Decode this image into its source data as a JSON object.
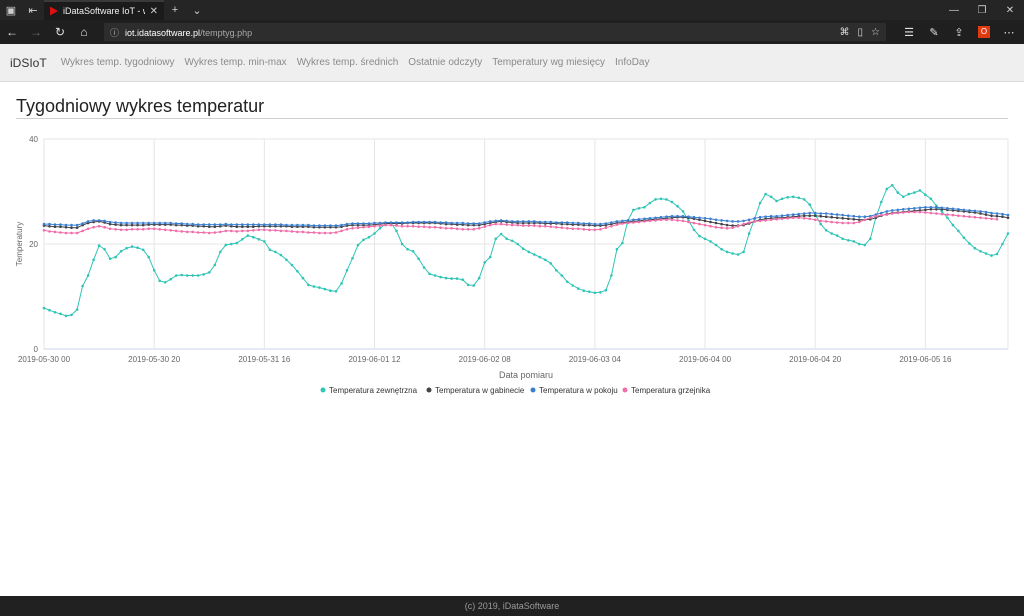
{
  "browser": {
    "tab_title": "iDataSoftware IoT - wyk",
    "url_host": "iot.idatasoftware.pl",
    "url_path": "/temptyg.php"
  },
  "nav": {
    "brand": "iDSIoT",
    "links": [
      "Wykres temp. tygodniowy",
      "Wykres temp. min-max",
      "Wykres temp. średnich",
      "Ostatnie odczyty",
      "Temperatury wg miesięcy",
      "InfoDay"
    ]
  },
  "page": {
    "heading": "Tygodniowy wykres temperatur"
  },
  "footer": {
    "text": "(c) 2019, iDataSoftware"
  },
  "chart_data": {
    "type": "line",
    "xlabel": "Data pomiaru",
    "ylabel": "Temperatury",
    "ylim": [
      0,
      40
    ],
    "yticks": [
      "0",
      "20",
      "40"
    ],
    "xticks": [
      "2019-05-30 00",
      "2019-05-30 20",
      "2019-05-31 16",
      "2019-06-01 12",
      "2019-06-02 08",
      "2019-06-03 04",
      "2019-06-04 00",
      "2019-06-04 20",
      "2019-06-05 16"
    ],
    "grid": true,
    "legend_position": "bottom",
    "series": [
      {
        "name": "Temperatura zewnętrzna",
        "color": "#2ec4b6",
        "values": [
          7.8,
          7.4,
          7.0,
          6.7,
          6.3,
          6.5,
          7.5,
          12.0,
          14.0,
          17.0,
          19.7,
          19.0,
          17.2,
          17.5,
          18.6,
          19.2,
          19.5,
          19.3,
          18.9,
          17.5,
          15.0,
          13.0,
          12.7,
          13.3,
          14.0,
          14.1,
          14.0,
          14.0,
          14.0,
          14.2,
          14.6,
          16.0,
          18.5,
          19.8,
          20.0,
          20.2,
          20.9,
          21.6,
          21.3,
          20.9,
          20.5,
          18.9,
          18.5,
          17.9,
          17.0,
          16.0,
          14.8,
          13.5,
          12.2,
          11.9,
          11.7,
          11.4,
          11.1,
          11.0,
          12.5,
          15.0,
          17.3,
          19.8,
          20.8,
          21.3,
          22.0,
          23.0,
          23.8,
          24.0,
          22.5,
          20.0,
          19.0,
          18.6,
          17.2,
          15.5,
          14.3,
          14.0,
          13.7,
          13.5,
          13.4,
          13.4,
          13.2,
          12.2,
          12.1,
          13.5,
          16.5,
          17.5,
          21.0,
          21.9,
          21.0,
          20.6,
          20.0,
          19.1,
          18.5,
          18.0,
          17.5,
          17.0,
          16.3,
          15.0,
          14.0,
          12.8,
          12.1,
          11.5,
          11.1,
          10.9,
          10.7,
          10.8,
          11.2,
          14.0,
          19.0,
          20.2,
          24.5,
          26.5,
          26.8,
          27.0,
          27.8,
          28.5,
          28.6,
          28.5,
          28.0,
          27.2,
          26.2,
          24.5,
          22.7,
          21.5,
          21.0,
          20.5,
          19.8,
          19.0,
          18.5,
          18.2,
          18.0,
          18.5,
          22.0,
          24.8,
          27.8,
          29.5,
          29.0,
          28.2,
          28.6,
          28.9,
          29.0,
          28.8,
          28.5,
          27.5,
          25.6,
          23.8,
          22.6,
          22.0,
          21.6,
          21.0,
          20.7,
          20.5,
          20.0,
          19.8,
          21.0,
          25.0,
          28.0,
          30.5,
          31.2,
          29.8,
          29.0,
          29.5,
          29.8,
          30.2,
          29.4,
          28.6,
          27.3,
          26.2,
          25.0,
          23.6,
          22.5,
          21.2,
          20.1,
          19.2,
          18.6,
          18.2,
          17.8,
          18.1,
          20.0,
          22.0
        ]
      },
      {
        "name": "Temperatura w gabinecie",
        "color": "#434348",
        "values": [
          23.5,
          23.4,
          23.3,
          23.3,
          23.2,
          23.1,
          23.1,
          23.6,
          24.0,
          24.2,
          24.3,
          24.1,
          23.8,
          23.7,
          23.6,
          23.6,
          23.6,
          23.6,
          23.6,
          23.7,
          23.7,
          23.7,
          23.7,
          23.7,
          23.6,
          23.6,
          23.5,
          23.5,
          23.4,
          23.4,
          23.3,
          23.3,
          23.4,
          23.5,
          23.4,
          23.3,
          23.3,
          23.3,
          23.3,
          23.4,
          23.4,
          23.4,
          23.4,
          23.4,
          23.4,
          23.3,
          23.3,
          23.3,
          23.3,
          23.2,
          23.2,
          23.2,
          23.2,
          23.2,
          23.3,
          23.5,
          23.6,
          23.6,
          23.6,
          23.6,
          23.7,
          23.8,
          23.9,
          23.9,
          23.9,
          23.9,
          24.0,
          24.0,
          24.0,
          24.0,
          24.0,
          24.0,
          23.9,
          23.8,
          23.8,
          23.7,
          23.7,
          23.6,
          23.6,
          23.6,
          23.8,
          24.0,
          24.2,
          24.3,
          24.2,
          24.1,
          24.0,
          24.0,
          24.0,
          24.0,
          24.0,
          23.9,
          23.9,
          23.9,
          23.8,
          23.8,
          23.7,
          23.7,
          23.6,
          23.6,
          23.5,
          23.5,
          23.6,
          23.8,
          24.0,
          24.1,
          24.2,
          24.3,
          24.4,
          24.5,
          24.6,
          24.7,
          24.8,
          24.9,
          25.0,
          25.1,
          25.1,
          25.0,
          24.8,
          24.6,
          24.4,
          24.2,
          24.0,
          23.8,
          23.6,
          23.5,
          23.5,
          23.6,
          23.9,
          24.3,
          24.6,
          24.8,
          24.9,
          25.0,
          25.0,
          25.1,
          25.2,
          25.3,
          25.4,
          25.4,
          25.4,
          25.3,
          25.2,
          25.1,
          25.0,
          24.9,
          24.8,
          24.7,
          24.6,
          24.6,
          24.7,
          25.0,
          25.4,
          25.7,
          25.9,
          26.0,
          26.1,
          26.2,
          26.3,
          26.4,
          26.5,
          26.6,
          26.6,
          26.6,
          26.5,
          26.4,
          26.3,
          26.2,
          26.1,
          26.0,
          25.8,
          25.6,
          25.4,
          25.3,
          25.2,
          25.0
        ]
      },
      {
        "name": "Temperatura w pokoju",
        "color": "#3a7fcf",
        "values": [
          23.8,
          23.8,
          23.7,
          23.7,
          23.6,
          23.6,
          23.6,
          23.9,
          24.3,
          24.5,
          24.5,
          24.4,
          24.2,
          24.1,
          24.0,
          24.0,
          24.0,
          24.0,
          24.0,
          24.0,
          24.0,
          24.0,
          24.0,
          24.0,
          23.9,
          23.9,
          23.8,
          23.8,
          23.7,
          23.7,
          23.7,
          23.7,
          23.7,
          23.8,
          23.7,
          23.7,
          23.7,
          23.7,
          23.7,
          23.7,
          23.7,
          23.7,
          23.7,
          23.7,
          23.6,
          23.6,
          23.6,
          23.6,
          23.6,
          23.5,
          23.5,
          23.5,
          23.5,
          23.5,
          23.6,
          23.8,
          23.9,
          23.9,
          23.9,
          23.9,
          24.0,
          24.0,
          24.1,
          24.1,
          24.1,
          24.1,
          24.1,
          24.2,
          24.2,
          24.2,
          24.2,
          24.2,
          24.1,
          24.1,
          24.0,
          24.0,
          24.0,
          23.9,
          23.9,
          23.9,
          24.1,
          24.3,
          24.4,
          24.5,
          24.4,
          24.3,
          24.3,
          24.3,
          24.3,
          24.3,
          24.2,
          24.2,
          24.2,
          24.1,
          24.1,
          24.1,
          24.0,
          24.0,
          23.9,
          23.9,
          23.8,
          23.8,
          23.9,
          24.1,
          24.3,
          24.4,
          24.5,
          24.6,
          24.7,
          24.8,
          24.9,
          25.0,
          25.1,
          25.2,
          25.3,
          25.3,
          25.3,
          25.2,
          25.1,
          25.0,
          24.9,
          24.8,
          24.6,
          24.5,
          24.4,
          24.3,
          24.3,
          24.4,
          24.6,
          24.9,
          25.1,
          25.2,
          25.3,
          25.3,
          25.4,
          25.5,
          25.6,
          25.7,
          25.8,
          25.9,
          25.9,
          25.8,
          25.8,
          25.7,
          25.6,
          25.5,
          25.4,
          25.3,
          25.2,
          25.2,
          25.3,
          25.6,
          25.9,
          26.2,
          26.4,
          26.5,
          26.6,
          26.7,
          26.8,
          26.9,
          27.0,
          27.0,
          27.0,
          26.9,
          26.8,
          26.7,
          26.6,
          26.5,
          26.4,
          26.3,
          26.2,
          26.1,
          25.9,
          25.8,
          25.7,
          25.5
        ]
      },
      {
        "name": "Temperatura grzejnika",
        "color": "#f06ea9",
        "values": [
          22.6,
          22.4,
          22.3,
          22.2,
          22.1,
          22.1,
          22.1,
          22.5,
          22.9,
          23.2,
          23.4,
          23.2,
          22.9,
          22.8,
          22.7,
          22.7,
          22.8,
          22.8,
          22.8,
          22.9,
          22.9,
          22.8,
          22.7,
          22.6,
          22.5,
          22.4,
          22.3,
          22.3,
          22.2,
          22.2,
          22.1,
          22.2,
          22.3,
          22.5,
          22.5,
          22.4,
          22.5,
          22.5,
          22.6,
          22.7,
          22.7,
          22.6,
          22.6,
          22.5,
          22.5,
          22.4,
          22.3,
          22.3,
          22.2,
          22.2,
          22.1,
          22.1,
          22.1,
          22.2,
          22.5,
          22.8,
          23.0,
          23.1,
          23.2,
          23.3,
          23.4,
          23.5,
          23.6,
          23.6,
          23.5,
          23.4,
          23.4,
          23.4,
          23.3,
          23.3,
          23.2,
          23.2,
          23.1,
          23.0,
          23.0,
          22.9,
          22.8,
          22.8,
          22.8,
          23.0,
          23.3,
          23.6,
          23.8,
          23.8,
          23.7,
          23.6,
          23.6,
          23.5,
          23.5,
          23.5,
          23.4,
          23.4,
          23.3,
          23.2,
          23.1,
          23.0,
          22.9,
          22.9,
          22.8,
          22.7,
          22.7,
          22.8,
          23.1,
          23.4,
          23.7,
          23.9,
          24.0,
          24.1,
          24.2,
          24.3,
          24.4,
          24.5,
          24.6,
          24.6,
          24.6,
          24.5,
          24.4,
          24.2,
          24.0,
          23.8,
          23.6,
          23.4,
          23.2,
          23.1,
          23.0,
          23.1,
          23.4,
          23.8,
          24.1,
          24.3,
          24.4,
          24.5,
          24.6,
          24.7,
          24.8,
          24.9,
          25.0,
          25.0,
          24.9,
          24.8,
          24.6,
          24.4,
          24.3,
          24.2,
          24.1,
          24.0,
          24.0,
          24.0,
          24.2,
          24.6,
          25.0,
          25.3,
          25.5,
          25.6,
          25.8,
          25.9,
          26.0,
          26.1,
          26.1,
          26.1,
          26.0,
          25.9,
          25.8,
          25.7,
          25.6,
          25.5,
          25.4,
          25.3,
          25.2,
          25.1,
          25.0,
          24.9,
          24.8,
          24.7
        ]
      }
    ]
  }
}
